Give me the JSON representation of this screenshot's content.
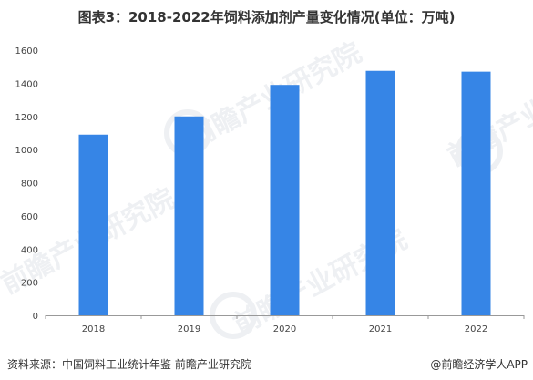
{
  "title": "图表3：2018-2022年饲料添加剂产量变化情况(单位：万吨)",
  "source": "资料来源：中国饲料工业统计年鉴 前瞻产业研究院",
  "credit": "@前瞻经济学人APP",
  "watermark": "前瞻产业研究院",
  "colors": {
    "bar": "#3685e6",
    "axis": "#999999",
    "background": "#ffffff"
  },
  "chart_data": {
    "type": "bar",
    "title": "图表3：2018-2022年饲料添加剂产量变化情况(单位：万吨)",
    "categories": [
      "2018",
      "2019",
      "2020",
      "2021",
      "2022"
    ],
    "values": [
      1090,
      1200,
      1390,
      1475,
      1470
    ],
    "ylim": [
      0,
      1600
    ],
    "yticks": [
      0,
      200,
      400,
      600,
      800,
      1000,
      1200,
      1400,
      1600
    ],
    "grid": false,
    "legend": "none"
  }
}
